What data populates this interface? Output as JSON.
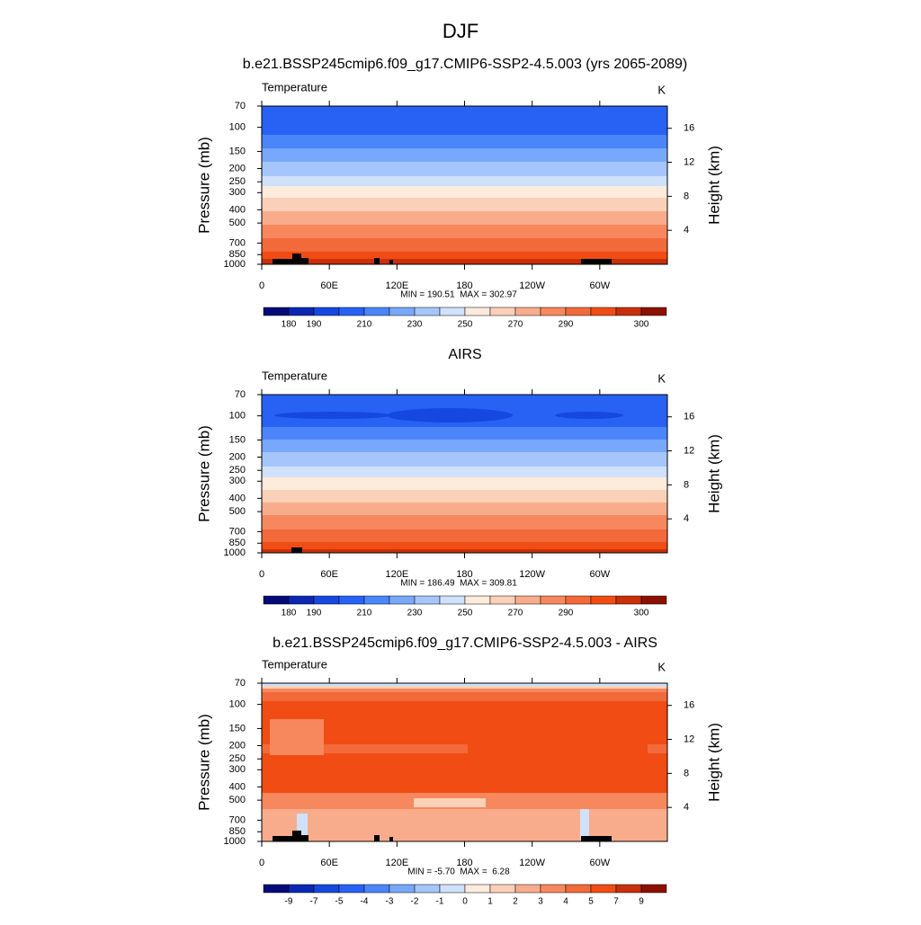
{
  "title": "DJF",
  "panels": [
    {
      "title": "b.e21.BSSP245cmip6.f09_g17.CMIP6-SSP2-4.5.003 (yrs 2065-2089)",
      "variable": "Temperature",
      "units": "K",
      "min_max": "MIN = 190.51  MAX = 302.97",
      "colorbar": {
        "colors": [
          "#050a78",
          "#0a28b4",
          "#1548e0",
          "#2862f5",
          "#4a86fa",
          "#78a8fb",
          "#a6c6fb",
          "#cfe1fb",
          "#fdebdc",
          "#fbd0b8",
          "#f9ac8c",
          "#f7885e",
          "#f36a3a",
          "#f04c14",
          "#c8300a",
          "#8c1004"
        ],
        "levels": [
          180,
          190,
          null,
          210,
          null,
          230,
          null,
          250,
          null,
          270,
          null,
          290,
          null,
          null,
          300
        ]
      }
    },
    {
      "title": "AIRS",
      "variable": "Temperature",
      "units": "K",
      "min_max": "MIN = 186.49  MAX = 309.81",
      "colorbar": {
        "colors": [
          "#050a78",
          "#0a28b4",
          "#1548e0",
          "#2862f5",
          "#4a86fa",
          "#78a8fb",
          "#a6c6fb",
          "#cfe1fb",
          "#fdebdc",
          "#fbd0b8",
          "#f9ac8c",
          "#f7885e",
          "#f36a3a",
          "#f04c14",
          "#c8300a",
          "#8c1004"
        ],
        "levels": [
          180,
          190,
          null,
          210,
          null,
          230,
          null,
          250,
          null,
          270,
          null,
          290,
          null,
          null,
          300
        ]
      }
    },
    {
      "title": "b.e21.BSSP245cmip6.f09_g17.CMIP6-SSP2-4.5.003 - AIRS",
      "variable": "Temperature",
      "units": "K",
      "min_max": "MIN = -5.70  MAX =  6.28",
      "colorbar": {
        "colors": [
          "#050a78",
          "#0a28b4",
          "#1548e0",
          "#2862f5",
          "#4a86fa",
          "#78a8fb",
          "#a6c6fb",
          "#cfe1fb",
          "#fdebdc",
          "#fbd0b8",
          "#f9ac8c",
          "#f7885e",
          "#f36a3a",
          "#f04c14",
          "#c8300a",
          "#8c1004"
        ],
        "levels": [
          -9,
          -7,
          -5,
          -4,
          -3,
          -2,
          -1,
          0,
          1,
          2,
          3,
          4,
          5,
          7,
          9
        ]
      }
    }
  ],
  "y_axis": {
    "label": "Pressure (mb)",
    "ylim": [
      70,
      1000
    ],
    "log": true,
    "ticks": [
      70,
      100,
      150,
      200,
      250,
      300,
      400,
      500,
      700,
      850,
      1000
    ]
  },
  "y2_axis": {
    "label": "Height (km)",
    "ticks": [
      4,
      8,
      12,
      16
    ]
  },
  "x_axis": {
    "xlim": [
      0,
      360
    ],
    "ticks": [
      0,
      {
        "value": 60,
        "label": "60E"
      },
      {
        "value": 120,
        "label": "120E"
      },
      180,
      {
        "value": 240,
        "label": "120W"
      },
      {
        "value": 300,
        "label": "60W"
      }
    ]
  }
}
